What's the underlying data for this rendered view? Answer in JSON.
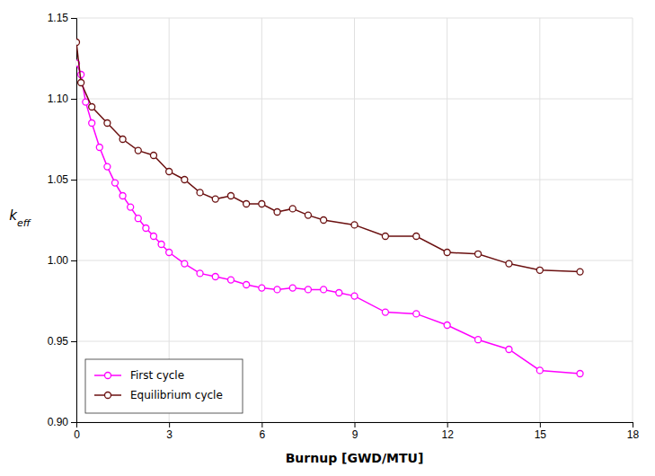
{
  "chart_data": {
    "type": "line",
    "xlabel": "Burnup [GWD/MTU]",
    "ylabel": "keff",
    "xlim": [
      0,
      18
    ],
    "ylim": [
      0.9,
      1.15
    ],
    "xticks": [
      0,
      3,
      6,
      9,
      12,
      15,
      18
    ],
    "yticks": [
      {
        "value": 0.9,
        "label": "0.90"
      },
      0.95,
      {
        "value": 1.0,
        "label": "1.00"
      },
      1.05,
      {
        "value": 1.1,
        "label": "1.10"
      },
      1.15
    ],
    "grid": true,
    "legend": "lower left",
    "series": [
      {
        "name": "First cycle",
        "color": "#FF00FF",
        "marker": "circle",
        "x": [
          0.0,
          0.15,
          0.3,
          0.5,
          0.75,
          1.0,
          1.25,
          1.5,
          1.75,
          2.0,
          2.25,
          2.5,
          2.75,
          3.0,
          3.5,
          4.0,
          4.5,
          5.0,
          5.5,
          6.0,
          6.5,
          7.0,
          7.5,
          8.0,
          8.5,
          9.0,
          10.0,
          11.0,
          12.0,
          13.0,
          14.0,
          15.0,
          16.3
        ],
        "values": [
          1.122,
          1.115,
          1.098,
          1.085,
          1.07,
          1.058,
          1.048,
          1.04,
          1.033,
          1.026,
          1.02,
          1.015,
          1.01,
          1.005,
          0.998,
          0.992,
          0.99,
          0.988,
          0.985,
          0.983,
          0.982,
          0.983,
          0.982,
          0.982,
          0.98,
          0.978,
          0.968,
          0.967,
          0.96,
          0.951,
          0.945,
          0.932,
          0.93
        ]
      },
      {
        "name": "Equilibrium cycle",
        "color": "#6B1010",
        "marker": "circle",
        "x": [
          0.0,
          0.15,
          0.5,
          1.0,
          1.5,
          2.0,
          2.5,
          3.0,
          3.5,
          4.0,
          4.5,
          5.0,
          5.5,
          6.0,
          6.5,
          7.0,
          7.5,
          8.0,
          9.0,
          10.0,
          11.0,
          12.0,
          13.0,
          14.0,
          15.0,
          16.3
        ],
        "values": [
          1.135,
          1.11,
          1.095,
          1.085,
          1.075,
          1.068,
          1.065,
          1.055,
          1.05,
          1.042,
          1.038,
          1.04,
          1.035,
          1.035,
          1.03,
          1.032,
          1.028,
          1.025,
          1.022,
          1.015,
          1.015,
          1.005,
          1.004,
          0.998,
          0.994,
          0.993
        ]
      }
    ]
  }
}
